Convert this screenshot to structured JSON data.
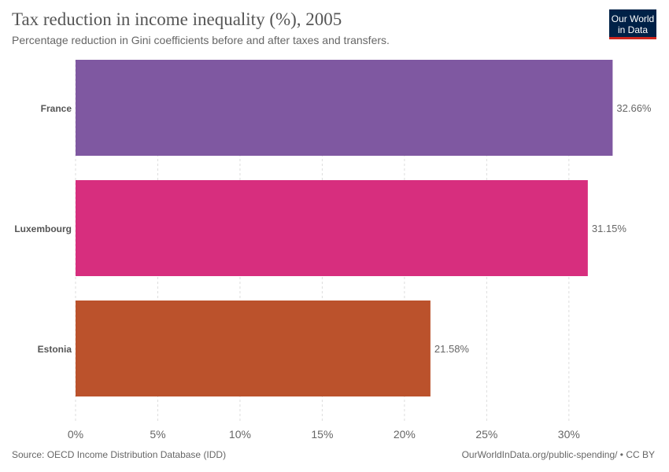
{
  "header": {
    "title": "Tax reduction in income inequality (%), 2005",
    "subtitle": "Percentage reduction in Gini coefficients before and after taxes and transfers."
  },
  "logo": {
    "line1": "Our World",
    "line2": "in Data"
  },
  "footer": {
    "source": "Source: OECD Income Distribution Database (IDD)",
    "credit": "OurWorldInData.org/public-spending/ • CC BY"
  },
  "colors": {
    "France": "#7f58a1",
    "Luxembourg": "#d72e7e",
    "Estonia": "#bb522c"
  },
  "chart_data": {
    "type": "bar",
    "orientation": "horizontal",
    "categories": [
      "France",
      "Luxembourg",
      "Estonia"
    ],
    "values": [
      32.66,
      31.15,
      21.58
    ],
    "value_labels": [
      "32.66%",
      "31.15%",
      "21.58%"
    ],
    "xlim": [
      0,
      33
    ],
    "xticks": [
      0,
      5,
      10,
      15,
      20,
      25,
      30
    ],
    "xtick_labels": [
      "0%",
      "5%",
      "10%",
      "15%",
      "20%",
      "25%",
      "30%"
    ],
    "grid": "vertical dashed"
  }
}
